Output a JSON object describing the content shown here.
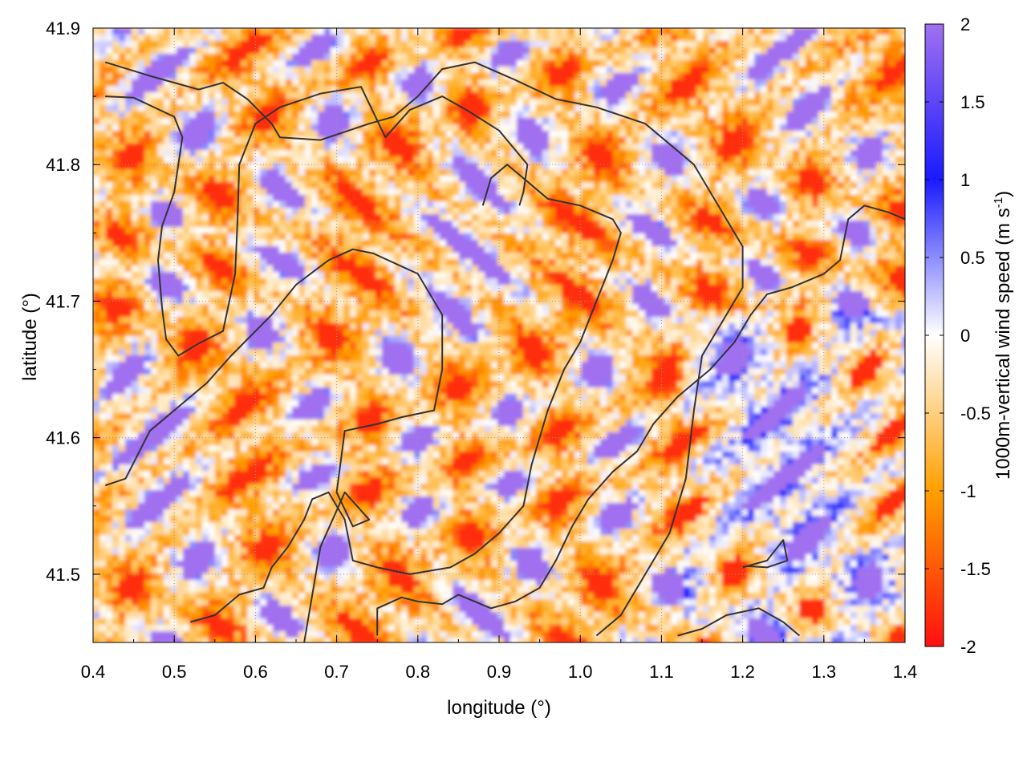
{
  "chart_data": {
    "type": "heatmap",
    "title": "",
    "xlabel": "longitude (°)",
    "ylabel": "latitude (°)",
    "xlim": [
      0.4,
      1.4
    ],
    "ylim": [
      41.45,
      41.9
    ],
    "xticks": [
      0.4,
      0.5,
      0.6,
      0.7,
      0.8,
      0.9,
      1.0,
      1.1,
      1.2,
      1.3,
      1.4
    ],
    "xtick_labels": [
      "0.4",
      "0.5",
      "0.6",
      "0.7",
      "0.8",
      "0.9",
      "1.0",
      "1.1",
      "1.2",
      "1.3",
      "1.4"
    ],
    "yticks": [
      41.5,
      41.6,
      41.7,
      41.8,
      41.9
    ],
    "ytick_labels": [
      "41.5",
      "41.6",
      "41.7",
      "41.8",
      "41.9"
    ],
    "grid": true,
    "colorbar": {
      "label_main": "1000m-vertical wind speed (m s",
      "label_sup": "-1",
      "label_end": ")",
      "range": [
        -2,
        2
      ],
      "ticks": [
        2,
        1.5,
        1,
        0.5,
        0,
        -0.5,
        -1,
        -1.5,
        -2
      ],
      "tick_labels": [
        "2",
        "1.5",
        "1",
        "0.5",
        "0",
        "-0.5",
        "-1",
        "-1.5",
        "-2"
      ],
      "colors": {
        "max": "#a070f0",
        "high": "#1a1aff",
        "mid": "#ffffff",
        "low": "#ffa000",
        "min": "#ff1010"
      }
    },
    "contour_color": "#333333",
    "contours": [
      [
        [
          0.415,
          41.875
        ],
        [
          0.47,
          41.865
        ],
        [
          0.53,
          41.855
        ],
        [
          0.56,
          41.86
        ],
        [
          0.59,
          41.848
        ],
        [
          0.62,
          41.83
        ],
        [
          0.63,
          41.82
        ],
        [
          0.68,
          41.818
        ],
        [
          0.74,
          41.83
        ],
        [
          0.77,
          41.835
        ],
        [
          0.8,
          41.85
        ],
        [
          0.83,
          41.87
        ],
        [
          0.87,
          41.875
        ],
        [
          0.92,
          41.862
        ],
        [
          0.97,
          41.848
        ],
        [
          1.02,
          41.842
        ],
        [
          1.08,
          41.83
        ],
        [
          1.14,
          41.8
        ],
        [
          1.17,
          41.77
        ],
        [
          1.2,
          41.74
        ],
        [
          1.2,
          41.71
        ],
        [
          1.17,
          41.68
        ],
        [
          1.15,
          41.66
        ],
        [
          1.14,
          41.62
        ],
        [
          1.13,
          41.57
        ],
        [
          1.11,
          41.53
        ],
        [
          1.08,
          41.5
        ],
        [
          1.05,
          41.47
        ],
        [
          1.02,
          41.455
        ]
      ],
      [
        [
          0.415,
          41.85
        ],
        [
          0.45,
          41.849
        ],
        [
          0.5,
          41.835
        ],
        [
          0.51,
          41.82
        ],
        [
          0.5,
          41.78
        ],
        [
          0.485,
          41.755
        ],
        [
          0.48,
          41.73
        ],
        [
          0.485,
          41.695
        ],
        [
          0.49,
          41.672
        ],
        [
          0.505,
          41.66
        ],
        [
          0.53,
          41.669
        ],
        [
          0.56,
          41.678
        ],
        [
          0.575,
          41.72
        ],
        [
          0.578,
          41.76
        ],
        [
          0.58,
          41.8
        ],
        [
          0.6,
          41.83
        ],
        [
          0.63,
          41.842
        ],
        [
          0.68,
          41.852
        ],
        [
          0.73,
          41.857
        ],
        [
          0.76,
          41.82
        ],
        [
          0.79,
          41.84
        ],
        [
          0.83,
          41.85
        ],
        [
          0.86,
          41.84
        ],
        [
          0.9,
          41.825
        ],
        [
          0.935,
          41.8
        ],
        [
          0.93,
          41.78
        ],
        [
          0.925,
          41.77
        ]
      ],
      [
        [
          0.415,
          41.565
        ],
        [
          0.44,
          41.57
        ],
        [
          0.47,
          41.605
        ],
        [
          0.5,
          41.62
        ],
        [
          0.54,
          41.64
        ],
        [
          0.57,
          41.66
        ],
        [
          0.62,
          41.69
        ],
        [
          0.65,
          41.712
        ],
        [
          0.69,
          41.73
        ],
        [
          0.72,
          41.738
        ],
        [
          0.745,
          41.735
        ],
        [
          0.8,
          41.72
        ],
        [
          0.83,
          41.69
        ],
        [
          0.83,
          41.65
        ],
        [
          0.82,
          41.62
        ],
        [
          0.78,
          41.615
        ],
        [
          0.75,
          41.61
        ],
        [
          0.71,
          41.605
        ],
        [
          0.7,
          41.56
        ],
        [
          0.72,
          41.535
        ],
        [
          0.74,
          41.54
        ],
        [
          0.71,
          41.56
        ],
        [
          0.68,
          41.52
        ],
        [
          0.66,
          41.45
        ]
      ],
      [
        [
          0.52,
          41.465
        ],
        [
          0.55,
          41.47
        ],
        [
          0.58,
          41.485
        ],
        [
          0.61,
          41.49
        ],
        [
          0.62,
          41.505
        ],
        [
          0.64,
          41.52
        ],
        [
          0.66,
          41.54
        ],
        [
          0.67,
          41.555
        ],
        [
          0.69,
          41.56
        ],
        [
          0.71,
          41.54
        ],
        [
          0.72,
          41.51
        ],
        [
          0.75,
          41.505
        ],
        [
          0.79,
          41.5
        ],
        [
          0.84,
          41.505
        ],
        [
          0.87,
          41.515
        ],
        [
          0.9,
          41.53
        ],
        [
          0.93,
          41.55
        ],
        [
          0.94,
          41.58
        ],
        [
          0.96,
          41.62
        ],
        [
          0.98,
          41.65
        ],
        [
          1.0,
          41.67
        ],
        [
          1.02,
          41.7
        ],
        [
          1.04,
          41.73
        ],
        [
          1.05,
          41.75
        ],
        [
          1.04,
          41.76
        ],
        [
          1.0,
          41.77
        ],
        [
          0.96,
          41.775
        ],
        [
          0.93,
          41.79
        ],
        [
          0.91,
          41.8
        ],
        [
          0.89,
          41.79
        ],
        [
          0.88,
          41.77
        ]
      ],
      [
        [
          0.75,
          41.455
        ],
        [
          0.75,
          41.475
        ],
        [
          0.78,
          41.483
        ],
        [
          0.8,
          41.48
        ],
        [
          0.83,
          41.478
        ],
        [
          0.85,
          41.485
        ],
        [
          0.89,
          41.475
        ],
        [
          0.92,
          41.48
        ],
        [
          0.95,
          41.49
        ],
        [
          0.97,
          41.51
        ],
        [
          0.99,
          41.535
        ],
        [
          1.01,
          41.555
        ],
        [
          1.04,
          41.575
        ],
        [
          1.07,
          41.59
        ],
        [
          1.09,
          41.61
        ],
        [
          1.12,
          41.63
        ],
        [
          1.16,
          41.65
        ],
        [
          1.19,
          41.67
        ],
        [
          1.21,
          41.69
        ],
        [
          1.23,
          41.705
        ],
        [
          1.26,
          41.71
        ],
        [
          1.28,
          41.715
        ],
        [
          1.3,
          41.72
        ],
        [
          1.32,
          41.73
        ],
        [
          1.33,
          41.76
        ],
        [
          1.35,
          41.77
        ],
        [
          1.38,
          41.765
        ],
        [
          1.4,
          41.76
        ]
      ],
      [
        [
          1.12,
          41.455
        ],
        [
          1.15,
          41.46
        ],
        [
          1.18,
          41.47
        ],
        [
          1.22,
          41.475
        ],
        [
          1.25,
          41.465
        ],
        [
          1.27,
          41.455
        ]
      ],
      [
        [
          1.2,
          41.505
        ],
        [
          1.23,
          41.51
        ],
        [
          1.25,
          41.525
        ],
        [
          1.255,
          41.51
        ],
        [
          1.23,
          41.505
        ],
        [
          1.205,
          41.506
        ]
      ]
    ]
  }
}
